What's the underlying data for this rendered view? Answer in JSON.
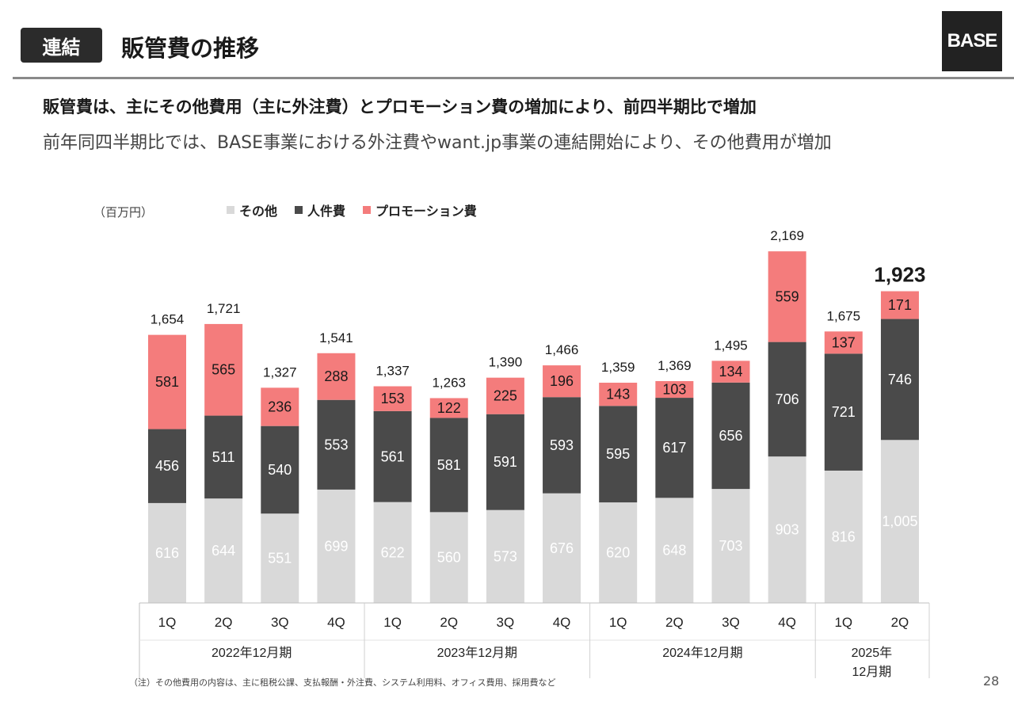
{
  "header": {
    "badge": "連結",
    "title": "販管費の推移",
    "logo": "BASE"
  },
  "subtitle": {
    "line1": "販管費は、主にその他費用（主に外注費）とプロモーション費の増加により、前四半期比で増加",
    "line2": "前年同四半期比では、BASE事業における外注費やwant.jp事業の連結開始により、その他費用が増加"
  },
  "unit_label": "（百万円）",
  "legend": [
    {
      "label": "その他",
      "color": "#d9d9d9"
    },
    {
      "label": "人件費",
      "color": "#4a4a4a"
    },
    {
      "label": "プロモーション費",
      "color": "#f47c7c"
    }
  ],
  "chart_data": {
    "type": "bar",
    "stacked": true,
    "categories": [
      "1Q",
      "2Q",
      "3Q",
      "4Q",
      "1Q",
      "2Q",
      "3Q",
      "4Q",
      "1Q",
      "2Q",
      "3Q",
      "4Q",
      "1Q",
      "2Q"
    ],
    "groups": [
      {
        "label": "2022年12月期",
        "count": 4
      },
      {
        "label": "2023年12月期",
        "count": 4
      },
      {
        "label": "2024年12月期",
        "count": 4
      },
      {
        "label": "2025年\n12月期",
        "count": 2
      }
    ],
    "series": [
      {
        "name": "その他",
        "color": "#d9d9d9",
        "label_color": "#ffffff",
        "values": [
          616,
          644,
          551,
          699,
          622,
          560,
          573,
          676,
          620,
          648,
          703,
          903,
          816,
          1005
        ]
      },
      {
        "name": "人件費",
        "color": "#4a4a4a",
        "label_color": "#ffffff",
        "values": [
          456,
          511,
          540,
          553,
          561,
          581,
          591,
          593,
          595,
          617,
          656,
          706,
          721,
          746
        ]
      },
      {
        "name": "プロモーション費",
        "color": "#f47c7c",
        "label_color": "#1a1a1a",
        "values": [
          581,
          565,
          236,
          288,
          153,
          122,
          225,
          196,
          143,
          103,
          134,
          559,
          137,
          171
        ]
      }
    ],
    "totals": [
      "1,654",
      "1,721",
      "1,327",
      "1,541",
      "1,337",
      "1,263",
      "1,390",
      "1,466",
      "1,359",
      "1,369",
      "1,495",
      "2,169",
      "1,675",
      "1,923"
    ],
    "highlight_last_total": true,
    "ylim": [
      0,
      2169
    ]
  },
  "footnote": "（注）その他費用の内容は、主に租税公課、支払報酬・外注費、システム利用料、オフィス費用、採用費など",
  "page_number": "28"
}
